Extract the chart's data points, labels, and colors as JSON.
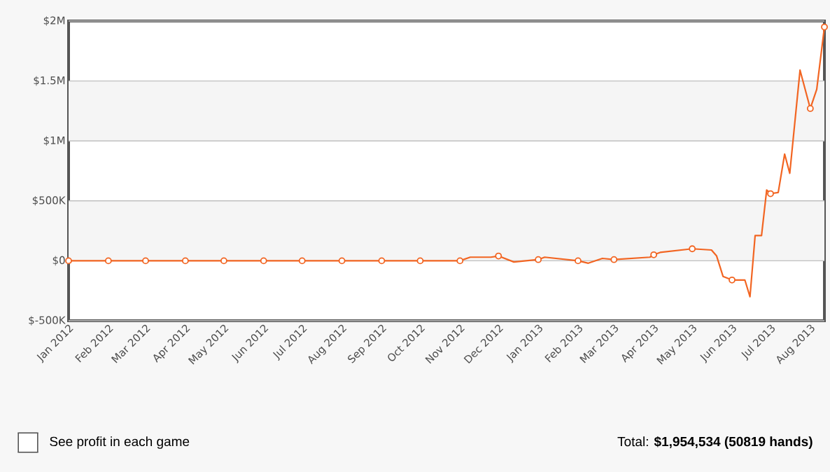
{
  "chart_data": {
    "type": "line",
    "xlim": [
      "2012-01-01",
      "2013-08-12"
    ],
    "xticks": [
      {
        "value": "2012-01-01",
        "label": "Jan 2012"
      },
      {
        "value": "2012-02-01",
        "label": "Feb 2012"
      },
      {
        "value": "2012-03-01",
        "label": "Mar 2012"
      },
      {
        "value": "2012-04-01",
        "label": "Apr 2012"
      },
      {
        "value": "2012-05-01",
        "label": "May 2012"
      },
      {
        "value": "2012-06-01",
        "label": "Jun 2012"
      },
      {
        "value": "2012-07-01",
        "label": "Jul 2012"
      },
      {
        "value": "2012-08-01",
        "label": "Aug 2012"
      },
      {
        "value": "2012-09-01",
        "label": "Sep 2012"
      },
      {
        "value": "2012-10-01",
        "label": "Oct 2012"
      },
      {
        "value": "2012-11-01",
        "label": "Nov 2012"
      },
      {
        "value": "2012-12-01",
        "label": "Dec 2012"
      },
      {
        "value": "2013-01-01",
        "label": "Jan 2013"
      },
      {
        "value": "2013-02-01",
        "label": "Feb 2013"
      },
      {
        "value": "2013-03-01",
        "label": "Mar 2013"
      },
      {
        "value": "2013-04-01",
        "label": "Apr 2013"
      },
      {
        "value": "2013-05-01",
        "label": "May 2013"
      },
      {
        "value": "2013-06-01",
        "label": "Jun 2013"
      },
      {
        "value": "2013-07-01",
        "label": "Jul 2013"
      },
      {
        "value": "2013-08-01",
        "label": "Aug 2013"
      }
    ],
    "ylim": [
      -500000,
      2000000
    ],
    "yticks": [
      {
        "value": -500000,
        "label": "$-500K"
      },
      {
        "value": 0,
        "label": "$0"
      },
      {
        "value": 500000,
        "label": "$500K"
      },
      {
        "value": 1000000,
        "label": "$1M"
      },
      {
        "value": 1500000,
        "label": "$1.5M"
      },
      {
        "value": 2000000,
        "label": "$2M"
      }
    ],
    "grid": "y",
    "bands": [
      {
        "axis": "y",
        "from": 0,
        "to": 500000,
        "color": "#f5f5f5"
      },
      {
        "axis": "y",
        "from": 1000000,
        "to": 1500000,
        "color": "#f5f5f5"
      }
    ],
    "series": [
      {
        "color": "#f26522",
        "marker": "none",
        "x": [
          "2012-01-01",
          "2012-02-01",
          "2012-03-01",
          "2012-04-01",
          "2012-05-01",
          "2012-06-01",
          "2012-07-01",
          "2012-08-01",
          "2012-09-01",
          "2012-10-01",
          "2012-11-01",
          "2012-11-09",
          "2012-11-25",
          "2012-12-01",
          "2012-12-13",
          "2013-01-01",
          "2013-01-06",
          "2013-02-01",
          "2013-02-09",
          "2013-02-20",
          "2013-03-01",
          "2013-03-29",
          "2013-04-01",
          "2013-04-06",
          "2013-05-01",
          "2013-05-16",
          "2013-05-20",
          "2013-05-25",
          "2013-06-01",
          "2013-06-11",
          "2013-06-15",
          "2013-06-19",
          "2013-06-24",
          "2013-06-28",
          "2013-07-01",
          "2013-07-07",
          "2013-07-12",
          "2013-07-16",
          "2013-07-24",
          "2013-08-01",
          "2013-08-06",
          "2013-08-12"
        ],
        "values": [
          0,
          0,
          0,
          0,
          0,
          0,
          0,
          0,
          0,
          0,
          0,
          30000,
          30000,
          40000,
          -10000,
          10000,
          30000,
          0,
          -20000,
          20000,
          10000,
          30000,
          50000,
          70000,
          100000,
          90000,
          40000,
          -130000,
          -160000,
          -160000,
          -300000,
          210000,
          210000,
          590000,
          560000,
          570000,
          890000,
          730000,
          1590000,
          1270000,
          1430000,
          1950000
        ]
      },
      {
        "type": "scatter",
        "color": "#f26522",
        "marker": "circle",
        "x": [
          "2012-01-01",
          "2012-02-01",
          "2012-03-01",
          "2012-04-01",
          "2012-05-01",
          "2012-06-01",
          "2012-07-01",
          "2012-08-01",
          "2012-09-01",
          "2012-10-01",
          "2012-11-01",
          "2012-12-01",
          "2013-01-01",
          "2013-02-01",
          "2013-03-01",
          "2013-04-01",
          "2013-05-01",
          "2013-06-01",
          "2013-07-01",
          "2013-08-01",
          "2013-08-12"
        ],
        "values": [
          0,
          0,
          0,
          0,
          0,
          0,
          0,
          0,
          0,
          0,
          0,
          40000,
          10000,
          0,
          10000,
          50000,
          100000,
          -160000,
          560000,
          1270000,
          1950000
        ]
      }
    ],
    "annotations": [
      "See profit in each game",
      "Total: **$1,954,534 (50819 hands)**"
    ]
  }
}
